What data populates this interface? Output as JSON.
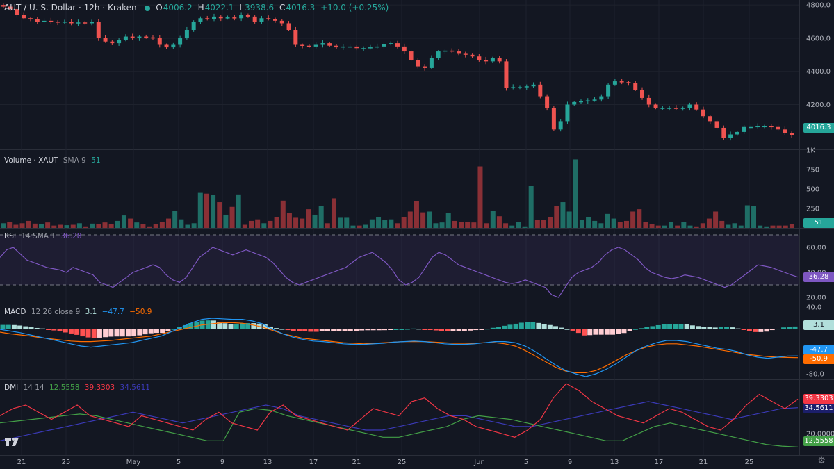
{
  "header": {
    "title": "AUT / U. S. Dollar · 12h · Kraken",
    "o_label": "O",
    "o_value": "4006.2",
    "h_label": "H",
    "h_value": "4022.1",
    "l_label": "L",
    "l_value": "3938.6",
    "c_label": "C",
    "c_value": "4016.3",
    "change": "+10.0 (+0.25%)"
  },
  "volume_legend": {
    "name": "Volume · XAUT",
    "sma": "SMA 9",
    "value": "51"
  },
  "rsi_legend": {
    "name": "RSI",
    "params": "14 SMA 1",
    "value": "36.28"
  },
  "macd_legend": {
    "name": "MACD",
    "params": "12 26 close 9",
    "hist": "3.1",
    "macd": "−47.7",
    "signal": "−50.9"
  },
  "dmi_legend": {
    "name": "DMI",
    "params": "14 14",
    "adx": "12.5558",
    "plus": "39.3303",
    "minus": "34.5611"
  },
  "price_labels": {
    "last": "4016.3",
    "volume": "51",
    "rsi": "36.28",
    "macd_hist": "3.1",
    "macd": "-47.7",
    "signal": "-50.9",
    "dmi_plus": "39.3303",
    "dmi_minus": "34.5611",
    "dmi_adx": "12.5558"
  },
  "axes": {
    "price_ticks": [
      "4800.0",
      "4600.0",
      "4400.0",
      "4200.0"
    ],
    "volume_ticks": [
      "1K",
      "750",
      "500",
      "250"
    ],
    "rsi_ticks": [
      "60.00",
      "40.00",
      "20.00"
    ],
    "macd_ticks": [
      "40.0",
      "-40.0",
      "-80.0"
    ],
    "dmi_ticks": [
      "20.0000"
    ],
    "date_ticks": [
      "21",
      "25",
      "May",
      "5",
      "9",
      "13",
      "17",
      "21",
      "25",
      "Jun",
      "5",
      "9",
      "13",
      "17",
      "21",
      "25"
    ]
  },
  "colors": {
    "up": "#26a69a",
    "down": "#ef5350",
    "background": "#131722",
    "rsi": "#7e57c2",
    "macd": "#2196f3",
    "signal": "#ff6d00",
    "adx": "#43a047",
    "dmi_plus": "#f23645",
    "dmi_minus": "#3b3ab8"
  },
  "icons": {
    "logo": "tradingview-logo-icon",
    "settings": "gear-icon"
  },
  "chart_data": {
    "type": "candlestick",
    "title": "AUT / U. S. Dollar · 12h · Kraken",
    "x_range": [
      "Apr 20",
      "Jun 29"
    ],
    "price_ylim": [
      3930,
      4830
    ],
    "candles_close": [
      4790,
      4775,
      4740,
      4720,
      4715,
      4700,
      4705,
      4700,
      4695,
      4700,
      4690,
      4695,
      4690,
      4700,
      4600,
      4580,
      4570,
      4590,
      4610,
      4600,
      4610,
      4605,
      4600,
      4560,
      4545,
      4560,
      4600,
      4650,
      4700,
      4720,
      4715,
      4730,
      4720,
      4725,
      4720,
      4740,
      4730,
      4700,
      4720,
      4715,
      4705,
      4690,
      4650,
      4560,
      4555,
      4550,
      4560,
      4570,
      4555,
      4545,
      4550,
      4550,
      4540,
      4540,
      4545,
      4550,
      4565,
      4570,
      4550,
      4520,
      4470,
      4430,
      4420,
      4480,
      4520,
      4525,
      4520,
      4510,
      4500,
      4490,
      4470,
      4460,
      4480,
      4460,
      4300,
      4305,
      4305,
      4310,
      4320,
      4250,
      4180,
      4050,
      4100,
      4200,
      4215,
      4220,
      4225,
      4230,
      4250,
      4320,
      4340,
      4335,
      4330,
      4290,
      4240,
      4200,
      4180,
      4180,
      4180,
      4175,
      4180,
      4200,
      4170,
      4130,
      4100,
      4060,
      4000,
      4020,
      4035,
      4065,
      4065,
      4070,
      4070,
      4065,
      4050,
      4030,
      4016
    ],
    "volume": [
      60,
      80,
      40,
      60,
      90,
      55,
      50,
      70,
      30,
      40,
      35,
      40,
      60,
      20,
      55,
      45,
      70,
      50,
      90,
      160,
      120,
      70,
      50,
      20,
      50,
      80,
      120,
      220,
      110,
      40,
      60,
      450,
      440,
      420,
      330,
      170,
      270,
      430,
      40,
      90,
      110,
      60,
      90,
      140,
      350,
      190,
      130,
      120,
      240,
      170,
      280,
      60,
      380,
      130,
      130,
      30,
      30,
      40,
      110,
      140,
      100,
      110,
      60,
      140,
      210,
      340,
      200,
      210,
      60,
      70,
      190,
      90,
      80,
      80,
      70,
      790,
      60,
      220,
      150,
      60,
      30,
      80,
      20,
      540,
      100,
      100,
      140,
      280,
      330,
      210,
      880,
      100,
      140,
      90,
      60,
      180,
      120,
      80,
      90,
      210,
      240,
      80,
      50,
      30,
      30,
      80,
      30,
      80,
      30,
      20,
      60,
      120,
      210,
      90,
      40,
      60,
      30,
      290,
      280,
      30,
      20,
      30,
      30,
      30,
      51
    ],
    "rsi_ylim": [
      15,
      75
    ],
    "rsi": [
      52,
      58,
      60,
      55,
      50,
      48,
      46,
      44,
      43,
      42,
      40,
      44,
      42,
      40,
      38,
      32,
      30,
      28,
      32,
      36,
      40,
      42,
      44,
      46,
      44,
      38,
      34,
      32,
      36,
      44,
      52,
      56,
      60,
      58,
      56,
      54,
      56,
      58,
      56,
      54,
      52,
      48,
      42,
      36,
      32,
      30,
      32,
      34,
      36,
      38,
      40,
      42,
      44,
      48,
      52,
      54,
      56,
      52,
      48,
      42,
      34,
      30,
      32,
      36,
      44,
      52,
      56,
      54,
      50,
      46,
      44,
      42,
      40,
      38,
      36,
      34,
      32,
      31,
      32,
      34,
      32,
      30,
      28,
      22,
      20,
      28,
      36,
      40,
      42,
      44,
      48,
      54,
      58,
      60,
      58,
      54,
      50,
      44,
      40,
      38,
      36,
      35,
      36,
      38,
      37,
      36,
      34,
      32,
      30,
      28,
      30,
      34,
      38,
      42,
      46,
      45,
      44,
      42,
      40,
      38,
      36.28
    ],
    "macd_ylim": [
      -90,
      45
    ],
    "macd": [
      0,
      -3,
      -6,
      -10,
      -14,
      -18,
      -22,
      -26,
      -30,
      -32,
      -30,
      -28,
      -26,
      -24,
      -20,
      -16,
      -12,
      -4,
      4,
      12,
      18,
      20,
      19,
      18,
      18,
      15,
      10,
      0,
      -8,
      -14,
      -18,
      -21,
      -22,
      -24,
      -26,
      -27,
      -27,
      -26,
      -25,
      -23,
      -22,
      -21,
      -22,
      -24,
      -26,
      -27,
      -27,
      -26,
      -24,
      -22,
      -22,
      -24,
      -30,
      -40,
      -52,
      -64,
      -74,
      -80,
      -85,
      -80,
      -72,
      -62,
      -50,
      -38,
      -30,
      -24,
      -20,
      -20,
      -22,
      -26,
      -30,
      -34,
      -36,
      -40,
      -46,
      -50,
      -52,
      -50,
      -48,
      -47.7
    ],
    "signal": [
      -5,
      -8,
      -10,
      -12,
      -15,
      -17,
      -19,
      -21,
      -22,
      -22,
      -21,
      -20,
      -18,
      -16,
      -14,
      -12,
      -8,
      -4,
      0,
      4,
      8,
      10,
      12,
      12,
      11,
      8,
      4,
      -2,
      -8,
      -12,
      -16,
      -18,
      -20,
      -22,
      -24,
      -25,
      -26,
      -25,
      -24,
      -23,
      -22,
      -22,
      -22,
      -23,
      -24,
      -25,
      -25,
      -25,
      -24,
      -24,
      -26,
      -30,
      -38,
      -48,
      -58,
      -68,
      -75,
      -78,
      -78,
      -74,
      -66,
      -56,
      -46,
      -38,
      -32,
      -28,
      -26,
      -26,
      -28,
      -30,
      -33,
      -36,
      -39,
      -42,
      -45,
      -47,
      -49,
      -50,
      -50.5,
      -50.9
    ],
    "dmi_ylim": [
      8,
      50
    ],
    "adx": [
      26,
      27,
      28,
      29,
      30,
      31,
      30,
      28,
      26,
      24,
      22,
      20,
      18,
      16,
      16,
      32,
      34,
      33,
      30,
      28,
      26,
      24,
      22,
      20,
      18,
      18,
      20,
      22,
      24,
      28,
      30,
      29,
      28,
      26,
      24,
      22,
      20,
      18,
      16,
      16,
      20,
      24,
      26,
      24,
      22,
      20,
      18,
      16,
      14,
      13,
      12.5558
    ],
    "dmi_plus": [
      30,
      34,
      36,
      32,
      28,
      32,
      36,
      30,
      28,
      26,
      24,
      30,
      28,
      26,
      24,
      22,
      28,
      32,
      26,
      24,
      22,
      32,
      36,
      30,
      28,
      26,
      24,
      22,
      28,
      34,
      32,
      30,
      38,
      40,
      34,
      30,
      28,
      24,
      22,
      20,
      18,
      22,
      28,
      40,
      48,
      44,
      38,
      34,
      30,
      28,
      26,
      30,
      34,
      32,
      28,
      24,
      22,
      28,
      36,
      42,
      38,
      34,
      39.3303
    ],
    "dmi_minus": [
      16,
      18,
      20,
      22,
      24,
      26,
      28,
      30,
      32,
      30,
      28,
      26,
      28,
      30,
      32,
      34,
      36,
      34,
      30,
      28,
      26,
      24,
      22,
      22,
      24,
      26,
      28,
      30,
      30,
      28,
      26,
      24,
      24,
      26,
      28,
      30,
      32,
      34,
      36,
      38,
      36,
      34,
      32,
      30,
      28,
      30,
      32,
      34,
      34.5611
    ]
  }
}
